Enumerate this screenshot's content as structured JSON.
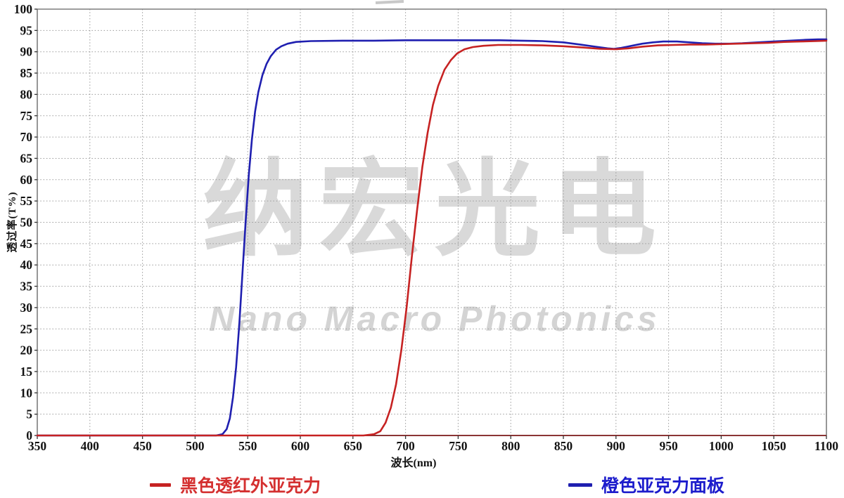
{
  "watermark": {
    "cn": "纳宏光电",
    "en": "Nano Macro Photonics"
  },
  "chart_data": {
    "type": "line",
    "title": "",
    "xlabel": "波长(nm)",
    "ylabel": "透过率(T%)",
    "xlim": [
      350,
      1100
    ],
    "ylim": [
      0,
      100
    ],
    "x_tick_step": 50,
    "y_tick_step": 5,
    "grid": "dotted",
    "legend_position": "bottom",
    "colors": {
      "grid": "#9a9a9a",
      "border": "#7d7d7d",
      "axis_bottom": "#8b3434",
      "tick_label": "#111111"
    },
    "series": [
      {
        "name": "黑色透红外亚克力",
        "color": "#c62222",
        "legend_color": "#d43030",
        "points": [
          [
            350,
            0
          ],
          [
            400,
            0
          ],
          [
            450,
            0
          ],
          [
            500,
            0
          ],
          [
            550,
            0
          ],
          [
            600,
            0
          ],
          [
            640,
            0
          ],
          [
            660,
            0
          ],
          [
            670,
            0.3
          ],
          [
            676,
            1
          ],
          [
            681,
            3
          ],
          [
            686,
            6.5
          ],
          [
            691,
            12
          ],
          [
            696,
            20
          ],
          [
            701,
            30
          ],
          [
            706,
            42
          ],
          [
            711,
            53
          ],
          [
            716,
            63
          ],
          [
            721,
            71
          ],
          [
            726,
            77.5
          ],
          [
            731,
            82
          ],
          [
            737,
            85.8
          ],
          [
            743,
            88
          ],
          [
            749,
            89.6
          ],
          [
            756,
            90.6
          ],
          [
            764,
            91.1
          ],
          [
            774,
            91.4
          ],
          [
            788,
            91.6
          ],
          [
            810,
            91.6
          ],
          [
            830,
            91.5
          ],
          [
            850,
            91.3
          ],
          [
            868,
            91.0
          ],
          [
            885,
            90.7
          ],
          [
            900,
            90.6
          ],
          [
            912,
            90.8
          ],
          [
            925,
            91.2
          ],
          [
            940,
            91.5
          ],
          [
            955,
            91.6
          ],
          [
            970,
            91.7
          ],
          [
            985,
            91.7
          ],
          [
            1000,
            91.8
          ],
          [
            1015,
            91.9
          ],
          [
            1030,
            92.0
          ],
          [
            1045,
            92.1
          ],
          [
            1060,
            92.3
          ],
          [
            1075,
            92.4
          ],
          [
            1090,
            92.5
          ],
          [
            1100,
            92.6
          ]
        ]
      },
      {
        "name": "橙色亚克力面板",
        "color": "#1f1fb0",
        "legend_color": "#1c1ccc",
        "points": [
          [
            350,
            0
          ],
          [
            400,
            0
          ],
          [
            450,
            0
          ],
          [
            500,
            0
          ],
          [
            520,
            0
          ],
          [
            526,
            0.3
          ],
          [
            530,
            1.5
          ],
          [
            533,
            4
          ],
          [
            536,
            9
          ],
          [
            539,
            16
          ],
          [
            542,
            26
          ],
          [
            545,
            38
          ],
          [
            548,
            50
          ],
          [
            551,
            61
          ],
          [
            554,
            69.5
          ],
          [
            557,
            76
          ],
          [
            560,
            80.5
          ],
          [
            564,
            84.5
          ],
          [
            568,
            87.2
          ],
          [
            572,
            89
          ],
          [
            577,
            90.5
          ],
          [
            582,
            91.3
          ],
          [
            588,
            91.9
          ],
          [
            596,
            92.3
          ],
          [
            610,
            92.5
          ],
          [
            640,
            92.6
          ],
          [
            670,
            92.6
          ],
          [
            700,
            92.7
          ],
          [
            730,
            92.7
          ],
          [
            760,
            92.7
          ],
          [
            790,
            92.7
          ],
          [
            810,
            92.6
          ],
          [
            830,
            92.5
          ],
          [
            850,
            92.2
          ],
          [
            866,
            91.7
          ],
          [
            880,
            91.2
          ],
          [
            892,
            90.8
          ],
          [
            898,
            90.7
          ],
          [
            905,
            90.9
          ],
          [
            915,
            91.4
          ],
          [
            925,
            91.9
          ],
          [
            935,
            92.2
          ],
          [
            945,
            92.4
          ],
          [
            958,
            92.4
          ],
          [
            970,
            92.2
          ],
          [
            982,
            92.0
          ],
          [
            995,
            91.9
          ],
          [
            1008,
            91.9
          ],
          [
            1020,
            92.0
          ],
          [
            1035,
            92.2
          ],
          [
            1050,
            92.4
          ],
          [
            1065,
            92.6
          ],
          [
            1080,
            92.8
          ],
          [
            1092,
            92.9
          ],
          [
            1100,
            92.9
          ]
        ]
      }
    ]
  }
}
